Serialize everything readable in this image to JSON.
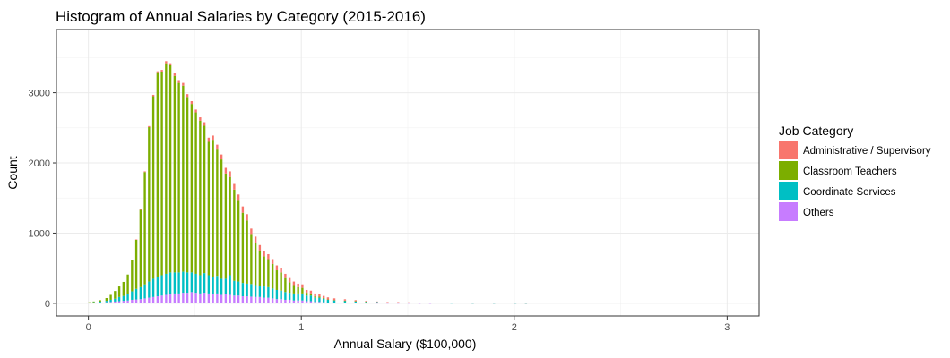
{
  "chart_data": {
    "type": "bar",
    "stacked": true,
    "title": "Histogram of Annual Salaries by Category (2015-2016)",
    "xlabel": "Annual Salary ($100,000)",
    "ylabel": "Count",
    "xlim": [
      -0.15,
      3.15
    ],
    "ylim": [
      -180,
      3900
    ],
    "x_ticks": [
      0,
      1,
      2,
      3
    ],
    "y_ticks": [
      0,
      1000,
      2000,
      3000
    ],
    "grid": true,
    "legend_title": "Job Category",
    "legend_position": "right",
    "series": [
      {
        "name": "Others",
        "color": "#C77CFF"
      },
      {
        "name": "Coordinate Services",
        "color": "#00BFC4"
      },
      {
        "name": "Classroom Teachers",
        "color": "#7CAE00"
      },
      {
        "name": "Administrative / Supervisory",
        "color": "#F8766D"
      }
    ],
    "legend_order": [
      "Administrative / Supervisory",
      "Classroom Teachers",
      "Coordinate Services",
      "Others"
    ],
    "bin_width": 0.01,
    "bin_starts": [
      0.0,
      0.02,
      0.05,
      0.08,
      0.1,
      0.12,
      0.14,
      0.16,
      0.18,
      0.2,
      0.22,
      0.24,
      0.26,
      0.28,
      0.3,
      0.32,
      0.34,
      0.36,
      0.38,
      0.4,
      0.42,
      0.44,
      0.46,
      0.48,
      0.5,
      0.52,
      0.54,
      0.56,
      0.58,
      0.6,
      0.62,
      0.64,
      0.66,
      0.68,
      0.7,
      0.72,
      0.74,
      0.76,
      0.78,
      0.8,
      0.82,
      0.84,
      0.86,
      0.88,
      0.9,
      0.92,
      0.94,
      0.96,
      0.98,
      1.0,
      1.02,
      1.04,
      1.06,
      1.08,
      1.1,
      1.12,
      1.15,
      1.2,
      1.25,
      1.3,
      1.35,
      1.4,
      1.45,
      1.5,
      1.55,
      1.6,
      1.7,
      1.8,
      1.9,
      2.0,
      2.05
    ],
    "counts": {
      "Others": [
        5,
        8,
        12,
        15,
        20,
        25,
        30,
        35,
        40,
        50,
        55,
        60,
        70,
        80,
        90,
        100,
        110,
        120,
        130,
        140,
        140,
        150,
        150,
        160,
        150,
        140,
        150,
        140,
        130,
        140,
        120,
        130,
        120,
        110,
        110,
        100,
        100,
        95,
        90,
        90,
        80,
        80,
        70,
        60,
        60,
        50,
        50,
        40,
        40,
        40,
        30,
        30,
        20,
        20,
        15,
        10,
        8,
        6,
        5,
        4,
        3,
        2,
        2,
        2,
        1,
        1,
        0,
        0,
        0,
        0,
        0
      ],
      "Coordinate Services": [
        5,
        8,
        12,
        20,
        30,
        40,
        60,
        70,
        90,
        120,
        150,
        170,
        200,
        230,
        260,
        280,
        290,
        300,
        310,
        300,
        300,
        300,
        290,
        280,
        270,
        260,
        280,
        260,
        250,
        250,
        230,
        220,
        280,
        210,
        200,
        190,
        180,
        180,
        170,
        160,
        160,
        150,
        140,
        130,
        120,
        110,
        100,
        100,
        100,
        100,
        80,
        80,
        60,
        60,
        50,
        40,
        35,
        30,
        25,
        20,
        15,
        10,
        10,
        8,
        6,
        5,
        3,
        2,
        2,
        2,
        1
      ],
      "Classroom Teachers": [
        5,
        10,
        20,
        40,
        70,
        110,
        150,
        200,
        280,
        450,
        700,
        1100,
        1600,
        2200,
        2600,
        2900,
        2900,
        3000,
        2950,
        2800,
        2700,
        2650,
        2500,
        2400,
        2300,
        2200,
        2100,
        1900,
        1950,
        1800,
        1700,
        1500,
        1400,
        1300,
        1150,
        1000,
        900,
        700,
        600,
        500,
        430,
        400,
        350,
        280,
        260,
        200,
        150,
        120,
        90,
        80,
        40,
        30,
        20,
        15,
        10,
        5,
        3,
        2,
        1,
        1,
        0,
        0,
        0,
        0,
        0,
        0,
        0,
        0,
        0,
        0,
        0
      ],
      "Administrative / Supervisory": [
        0,
        0,
        0,
        0,
        0,
        0,
        0,
        0,
        0,
        0,
        5,
        10,
        10,
        15,
        20,
        25,
        25,
        30,
        30,
        35,
        40,
        40,
        40,
        40,
        40,
        50,
        50,
        60,
        60,
        70,
        70,
        80,
        80,
        80,
        90,
        90,
        90,
        90,
        90,
        80,
        80,
        70,
        70,
        70,
        60,
        60,
        60,
        50,
        50,
        50,
        40,
        40,
        40,
        35,
        30,
        30,
        25,
        20,
        15,
        10,
        8,
        6,
        5,
        4,
        3,
        3,
        2,
        2,
        2,
        2,
        2
      ]
    }
  }
}
